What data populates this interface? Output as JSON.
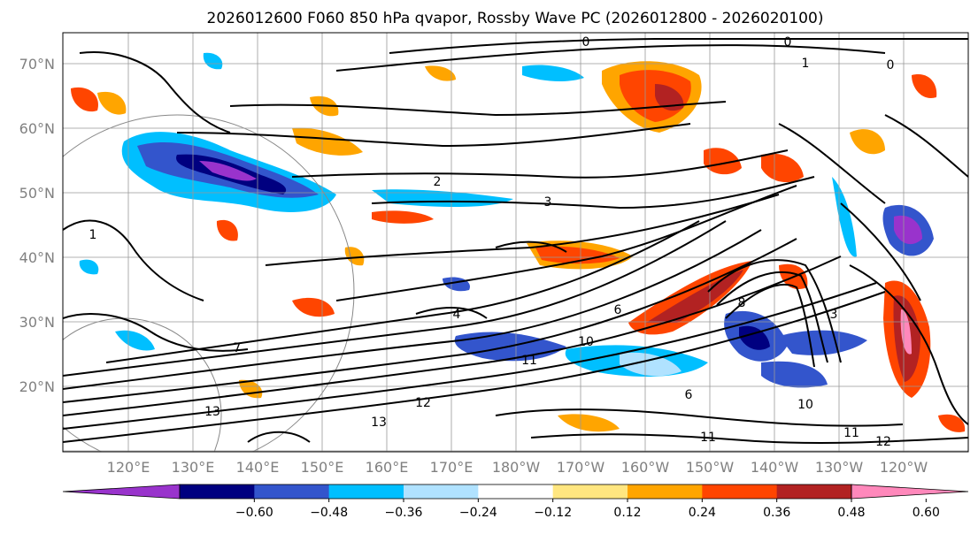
{
  "title": "2026012600 F060 850 hPa qvapor, Rossby Wave PC (2026012800 - 2026020100)",
  "lat_labels": [
    "70°N",
    "60°N",
    "50°N",
    "40°N",
    "30°N",
    "20°N"
  ],
  "lon_labels": [
    "120°E",
    "130°E",
    "140°E",
    "150°E",
    "160°E",
    "170°E",
    "180°W",
    "170°W",
    "160°W",
    "150°W",
    "140°W",
    "130°W",
    "120°W"
  ],
  "colorbar": {
    "colors": [
      "#9933cc",
      "#000080",
      "#3355cc",
      "#00bfff",
      "#b0e2ff",
      "#ffffff",
      "#ffe680",
      "#ffa500",
      "#ff4500",
      "#b22222",
      "#ff88bb"
    ],
    "ticks": [
      "−0.60",
      "−0.48",
      "−0.36",
      "−0.24",
      "−0.12",
      "0.12",
      "0.24",
      "0.36",
      "0.48",
      "0.60"
    ]
  },
  "contour_labels": [
    "0",
    "0",
    "0",
    "1",
    "1",
    "2",
    "3",
    "3",
    "4",
    "6",
    "6",
    "7",
    "8",
    "10",
    "10",
    "11",
    "11",
    "11",
    "12",
    "12",
    "13",
    "13"
  ],
  "grid": "on"
}
